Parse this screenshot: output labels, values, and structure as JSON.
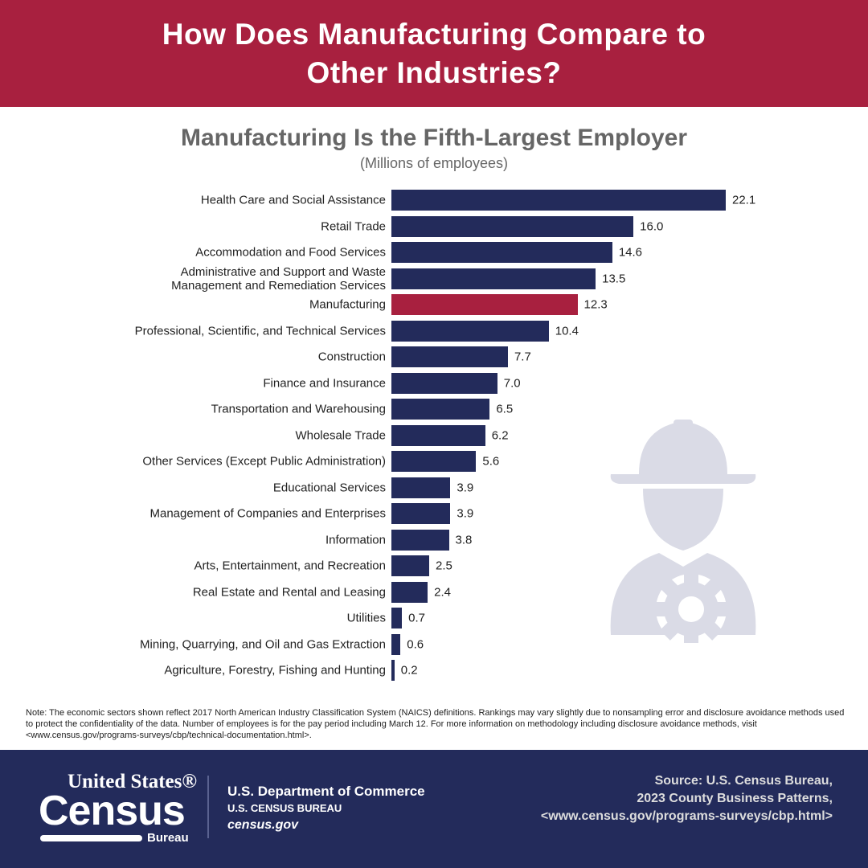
{
  "header": {
    "title": "How Does Manufacturing Compare to Other Industries?"
  },
  "colors": {
    "header": "#A8203F",
    "bar": "#232B5B",
    "highlight": "#A8203F",
    "icon": "#DADBE6"
  },
  "chart_data": {
    "type": "bar",
    "orientation": "horizontal",
    "title": "Manufacturing Is the Fifth-Largest Employer",
    "subtitle": "(Millions of employees)",
    "xlabel": "",
    "ylabel": "",
    "xlim": [
      0,
      22.1
    ],
    "highlight": "Manufacturing",
    "categories": [
      "Health Care and Social Assistance",
      "Retail Trade",
      "Accommodation and Food Services",
      "Administrative and Support and Waste Management and Remediation Services",
      "Manufacturing",
      "Professional, Scientific, and Technical Services",
      "Construction",
      "Finance and Insurance",
      "Transportation and Warehousing",
      "Wholesale Trade",
      "Other Services (Except Public Administration)",
      "Educational Services",
      "Management of Companies and Enterprises",
      "Information",
      "Arts, Entertainment, and Recreation",
      "Real Estate and Rental and Leasing",
      "Utilities",
      "Mining, Quarrying, and Oil and Gas Extraction",
      "Agriculture, Forestry, Fishing and Hunting"
    ],
    "values": [
      22.1,
      16.0,
      14.6,
      13.5,
      12.3,
      10.4,
      7.7,
      7.0,
      6.5,
      6.2,
      5.6,
      3.9,
      3.9,
      3.8,
      2.5,
      2.4,
      0.7,
      0.6,
      0.2
    ]
  },
  "note": "Note: The economic sectors shown reflect 2017 North American Industry Classification System (NAICS) definitions. Rankings may vary slightly due to nonsampling error and disclosure avoidance methods used to protect the confidentiality of the data. Number of employees is for the pay period including March 12. For more information on methodology including disclosure avoidance methods, visit <www.census.gov/programs-surveys/cbp/technical-documentation.html>.",
  "footer": {
    "logo_text": {
      "top": "United States®",
      "main": "Census",
      "bottom": "Bureau"
    },
    "dept": "U.S. Department of Commerce",
    "bureau": "U.S. CENSUS BUREAU",
    "site": "census.gov",
    "source": [
      "Source: U.S. Census Bureau,",
      "2023 County Business Patterns,",
      "<www.census.gov/programs-surveys/cbp.html>"
    ]
  }
}
